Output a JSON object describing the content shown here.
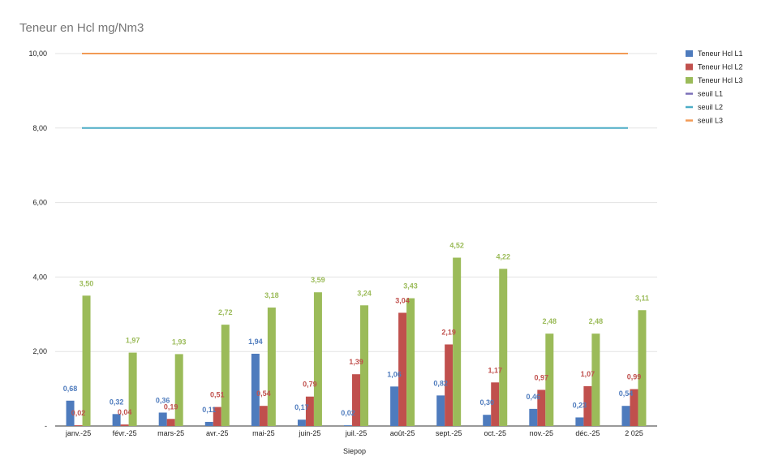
{
  "chart_data": {
    "type": "bar",
    "title": "Teneur en Hcl mg/Nm3",
    "xlabel": "Siepop",
    "ylabel": "",
    "ylim": [
      0,
      10
    ],
    "yticks": [
      0,
      2,
      4,
      6,
      8,
      10
    ],
    "ytick_labels": [
      "-",
      "2,00",
      "4,00",
      "6,00",
      "8,00",
      "10,00"
    ],
    "legend_position": "right",
    "categories": [
      "janv.-25",
      "févr.-25",
      "mars-25",
      "avr.-25",
      "mai-25",
      "juin-25",
      "juil.-25",
      "août-25",
      "sept.-25",
      "oct.-25",
      "nov.-25",
      "déc.-25",
      "2 025"
    ],
    "series": [
      {
        "name": "Teneur Hcl L1",
        "color": "#4e7bbd",
        "values": [
          0.68,
          0.32,
          0.36,
          0.11,
          1.94,
          0.17,
          0.02,
          1.06,
          0.82,
          0.3,
          0.46,
          0.23,
          0.54
        ],
        "labels": [
          "0,68",
          "0,32",
          "0,36",
          "0,11",
          "1,94",
          "0,17",
          "0,02",
          "1,06",
          "0,82",
          "0,30",
          "0,46",
          "0,23",
          "0,54"
        ]
      },
      {
        "name": "Teneur Hcl L2",
        "color": "#c0504d",
        "values": [
          0.02,
          0.04,
          0.19,
          0.51,
          0.54,
          0.79,
          1.39,
          3.04,
          2.19,
          1.17,
          0.97,
          1.07,
          0.99
        ],
        "labels": [
          "0,02",
          "0,04",
          "0,19",
          "0,51",
          "0,54",
          "0,79",
          "1,39",
          "3,04",
          "2,19",
          "1,17",
          "0,97",
          "1,07",
          "0,99"
        ]
      },
      {
        "name": "Teneur Hcl L3",
        "color": "#9bbb59",
        "values": [
          3.5,
          1.97,
          1.93,
          2.72,
          3.18,
          3.59,
          3.24,
          3.43,
          4.52,
          4.22,
          2.48,
          2.48,
          3.11
        ],
        "labels": [
          "3,50",
          "1,97",
          "1,93",
          "2,72",
          "3,18",
          "3,59",
          "3,24",
          "3,43",
          "4,52",
          "4,22",
          "2,48",
          "2,48",
          "3,11"
        ]
      }
    ],
    "thresholds": [
      {
        "name": "seuil L1",
        "color": "#7b6fb8",
        "value": 10
      },
      {
        "name": "seuil L2",
        "color": "#4bacc6",
        "value": 8
      },
      {
        "name": "seuil L3",
        "color": "#f29a55",
        "value": 10
      }
    ]
  }
}
